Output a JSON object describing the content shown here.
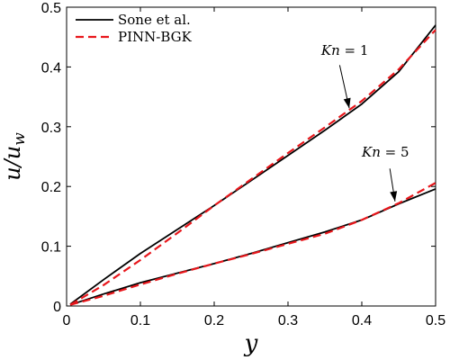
{
  "chart_data": {
    "type": "line",
    "xlabel": "y",
    "ylabel": "u/u",
    "ylabel_sub": "w",
    "xlim": [
      0,
      0.5
    ],
    "ylim": [
      0,
      0.5
    ],
    "xticks": [
      0,
      0.1,
      0.2,
      0.3,
      0.4,
      0.5
    ],
    "yticks": [
      0,
      0.1,
      0.2,
      0.3,
      0.4,
      0.5
    ],
    "xtick_labels": [
      "0",
      "0.1",
      "0.2",
      "0.3",
      "0.4",
      "0.5"
    ],
    "ytick_labels": [
      "0",
      "0.1",
      "0.2",
      "0.3",
      "0.4",
      "0.5"
    ],
    "grid": false,
    "legend_position": "top-left",
    "series": [
      {
        "name": "Sone et al.",
        "color": "#000000",
        "dash": "solid",
        "group": "Kn1",
        "x": [
          0.005,
          0.05,
          0.1,
          0.15,
          0.2,
          0.25,
          0.3,
          0.35,
          0.4,
          0.45,
          0.5
        ],
        "y": [
          0.003,
          0.044,
          0.088,
          0.128,
          0.168,
          0.21,
          0.252,
          0.294,
          0.338,
          0.392,
          0.47
        ]
      },
      {
        "name": "PINN-BGK",
        "color": "#e8161b",
        "dash": "dashed",
        "group": "Kn1",
        "x": [
          0.005,
          0.05,
          0.1,
          0.15,
          0.2,
          0.25,
          0.3,
          0.35,
          0.4,
          0.45,
          0.5
        ],
        "y": [
          0.002,
          0.035,
          0.077,
          0.122,
          0.168,
          0.212,
          0.256,
          0.299,
          0.343,
          0.396,
          0.462
        ]
      },
      {
        "name": "Sone et al.",
        "color": "#000000",
        "dash": "solid",
        "group": "Kn5",
        "x": [
          0.005,
          0.05,
          0.1,
          0.15,
          0.2,
          0.25,
          0.3,
          0.35,
          0.4,
          0.45,
          0.5
        ],
        "y": [
          0.002,
          0.02,
          0.039,
          0.055,
          0.071,
          0.088,
          0.106,
          0.124,
          0.144,
          0.171,
          0.196
        ]
      },
      {
        "name": "PINN-BGK",
        "color": "#e8161b",
        "dash": "dashed",
        "group": "Kn5",
        "x": [
          0.005,
          0.05,
          0.1,
          0.15,
          0.2,
          0.25,
          0.3,
          0.35,
          0.4,
          0.45,
          0.5
        ],
        "y": [
          0.002,
          0.017,
          0.036,
          0.054,
          0.071,
          0.087,
          0.104,
          0.121,
          0.144,
          0.172,
          0.206
        ]
      }
    ],
    "legend": [
      {
        "label": "Sone et al.",
        "color": "#000000",
        "dash": "solid"
      },
      {
        "label": "PINN-BGK",
        "color": "#e8161b",
        "dash": "dashed"
      }
    ],
    "annotations": [
      {
        "var": "Kn",
        "rest": " = 1",
        "text_pos": [
          0.345,
          0.42
        ],
        "arrow_from": [
          0.37,
          0.403
        ],
        "arrow_to": [
          0.383,
          0.331
        ]
      },
      {
        "var": "Kn",
        "rest": " = 5",
        "text_pos": [
          0.4,
          0.25
        ],
        "arrow_from": [
          0.438,
          0.23
        ],
        "arrow_to": [
          0.445,
          0.175
        ]
      }
    ]
  }
}
